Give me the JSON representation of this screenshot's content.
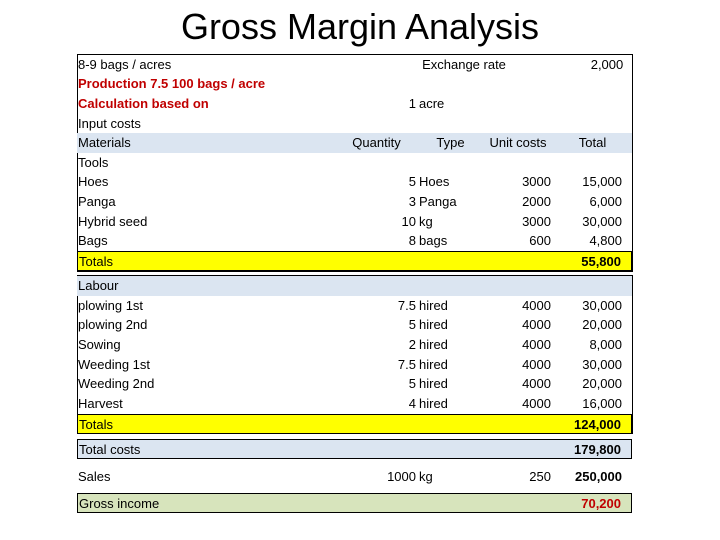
{
  "title": "Gross Margin Analysis",
  "table": {
    "rows": [
      {
        "label": "8-9 bags / acres",
        "note": "Exchange rate",
        "total": "2,000"
      },
      {
        "label": "Production 7.5 100 bags / acre"
      },
      {
        "label": "Calculation based on",
        "quantity": "1",
        "type": "acre"
      },
      {
        "label": "Input costs"
      },
      {
        "label": "Materials",
        "quantity": "Quantity",
        "type": "Type",
        "unit_cost": "Unit costs",
        "total": "Total"
      },
      {
        "label": "Tools"
      },
      {
        "label": "Hoes",
        "quantity": "5",
        "type": "Hoes",
        "unit_cost": "3000",
        "total": "15,000"
      },
      {
        "label": "Panga",
        "quantity": "3",
        "type": "Panga",
        "unit_cost": "2000",
        "total": "6,000"
      },
      {
        "label": "Hybrid seed",
        "quantity": "10",
        "type": "kg",
        "unit_cost": "3000",
        "total": "30,000"
      },
      {
        "label": "Bags",
        "quantity": "8",
        "type": "bags",
        "unit_cost": "600",
        "total": "4,800"
      },
      {
        "label": "Totals",
        "total": "55,800"
      },
      {
        "label": "Labour"
      },
      {
        "label": "plowing 1st",
        "quantity": "7.5",
        "type": "hired",
        "unit_cost": "4000",
        "total": "30,000"
      },
      {
        "label": "plowing 2nd",
        "quantity": "5",
        "type": "hired",
        "unit_cost": "4000",
        "total": "20,000"
      },
      {
        "label": "Sowing",
        "quantity": "2",
        "type": "hired",
        "unit_cost": "4000",
        "total": "8,000"
      },
      {
        "label": "Weeding 1st",
        "quantity": "7.5",
        "type": "hired",
        "unit_cost": "4000",
        "total": "30,000"
      },
      {
        "label": "Weeding 2nd",
        "quantity": "5",
        "type": "hired",
        "unit_cost": "4000",
        "total": "20,000"
      },
      {
        "label": "Harvest",
        "quantity": "4",
        "type": "hired",
        "unit_cost": "4000",
        "total": "16,000"
      },
      {
        "label": "Totals",
        "total": "124,000"
      },
      {
        "label": "Total costs",
        "total": "179,800"
      },
      {
        "label": "Sales",
        "quantity": "1000",
        "type": "kg",
        "unit_cost": "250",
        "total": "250,000"
      },
      {
        "label": "Gross income",
        "total": "70,200"
      }
    ]
  }
}
